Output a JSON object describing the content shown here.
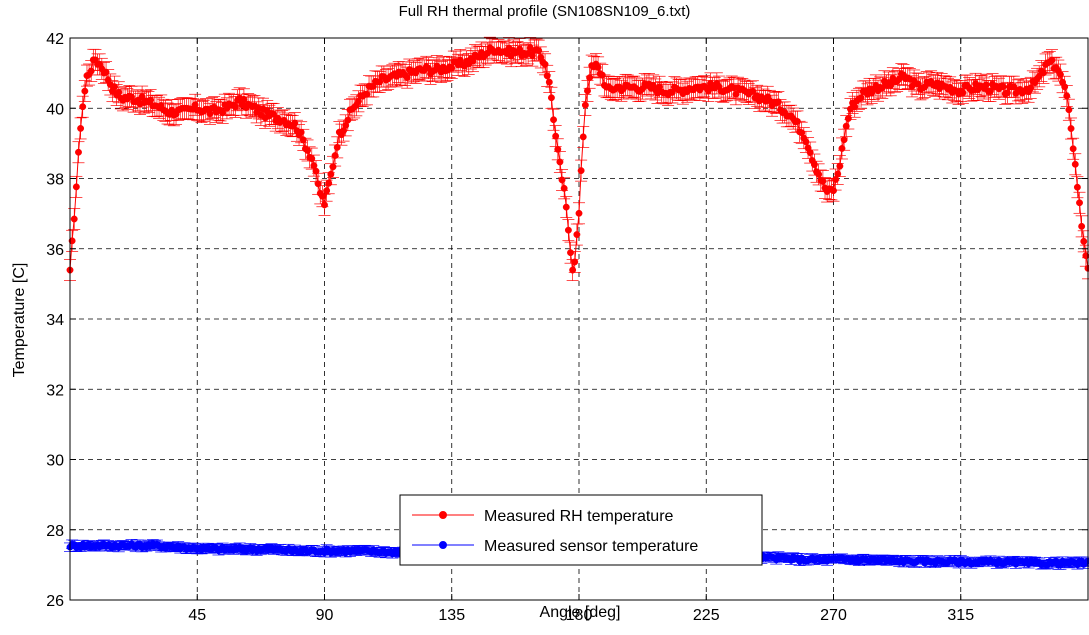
{
  "chart_data": {
    "type": "line",
    "title": "Full RH thermal profile (SN108SN109_6.txt)",
    "xlabel": "Angle [deg]",
    "ylabel": "Temperature [C]",
    "xlim": [
      0,
      360
    ],
    "ylim": [
      26,
      42
    ],
    "x_ticks": [
      45,
      90,
      135,
      180,
      225,
      270,
      315
    ],
    "y_ticks": [
      26,
      28,
      30,
      32,
      34,
      36,
      38,
      40,
      42
    ],
    "grid": true,
    "grid_style": "dashed",
    "legend_position": "bottom-center",
    "markers": "filled-circle",
    "error_bars": true,
    "series": [
      {
        "name": "Measured RH temperature",
        "color": "#ff0000",
        "x": [
          0,
          2,
          4,
          6,
          9,
          12,
          15,
          18,
          22,
          26,
          30,
          35,
          40,
          45,
          50,
          55,
          60,
          65,
          70,
          75,
          80,
          83,
          86,
          88,
          90,
          92,
          95,
          100,
          105,
          110,
          115,
          120,
          125,
          130,
          135,
          140,
          145,
          150,
          155,
          160,
          165,
          168,
          170,
          172,
          175,
          177,
          178,
          180,
          182,
          184,
          186,
          188,
          190,
          193,
          196,
          200,
          205,
          210,
          215,
          220,
          225,
          230,
          235,
          240,
          245,
          250,
          255,
          260,
          263,
          266,
          268,
          270,
          272,
          274,
          276,
          280,
          285,
          290,
          295,
          300,
          305,
          310,
          315,
          320,
          325,
          330,
          335,
          340,
          343,
          346,
          349,
          352,
          354,
          356,
          358,
          360
        ],
        "y": [
          35.3,
          37.5,
          39.8,
          40.9,
          41.4,
          41.1,
          40.6,
          40.3,
          40.3,
          40.2,
          40.1,
          39.9,
          39.9,
          40.0,
          39.9,
          40.0,
          40.2,
          40.0,
          39.8,
          39.7,
          39.5,
          39.0,
          38.5,
          37.7,
          37.3,
          38.0,
          39.2,
          40.0,
          40.5,
          40.8,
          40.9,
          41.0,
          41.1,
          41.1,
          41.2,
          41.3,
          41.5,
          41.7,
          41.6,
          41.6,
          41.6,
          41.3,
          40.5,
          39.0,
          37.5,
          36.0,
          35.3,
          37.0,
          40.0,
          41.1,
          41.2,
          41.0,
          40.5,
          40.6,
          40.6,
          40.6,
          40.6,
          40.5,
          40.5,
          40.6,
          40.6,
          40.6,
          40.5,
          40.4,
          40.3,
          40.1,
          39.8,
          39.2,
          38.5,
          37.9,
          37.6,
          37.7,
          38.3,
          39.3,
          40.0,
          40.4,
          40.6,
          40.7,
          40.9,
          40.6,
          40.7,
          40.6,
          40.5,
          40.6,
          40.6,
          40.5,
          40.5,
          40.6,
          40.9,
          41.3,
          41.2,
          40.5,
          39.5,
          38.0,
          36.5,
          35.5
        ]
      },
      {
        "name": "Measured sensor temperature",
        "color": "#0000ff",
        "x": [
          0,
          10,
          20,
          30,
          40,
          50,
          60,
          70,
          80,
          90,
          100,
          110,
          120,
          130,
          140,
          150,
          160,
          170,
          180,
          190,
          200,
          210,
          220,
          230,
          240,
          250,
          260,
          270,
          280,
          290,
          300,
          310,
          320,
          330,
          340,
          350,
          360
        ],
        "y": [
          27.55,
          27.55,
          27.55,
          27.55,
          27.5,
          27.45,
          27.45,
          27.45,
          27.4,
          27.4,
          27.4,
          27.38,
          27.35,
          27.33,
          27.3,
          27.3,
          27.28,
          27.28,
          27.27,
          27.25,
          27.25,
          27.25,
          27.22,
          27.22,
          27.2,
          27.2,
          27.15,
          27.15,
          27.15,
          27.12,
          27.1,
          27.1,
          27.08,
          27.08,
          27.05,
          27.05,
          27.05
        ]
      }
    ]
  }
}
